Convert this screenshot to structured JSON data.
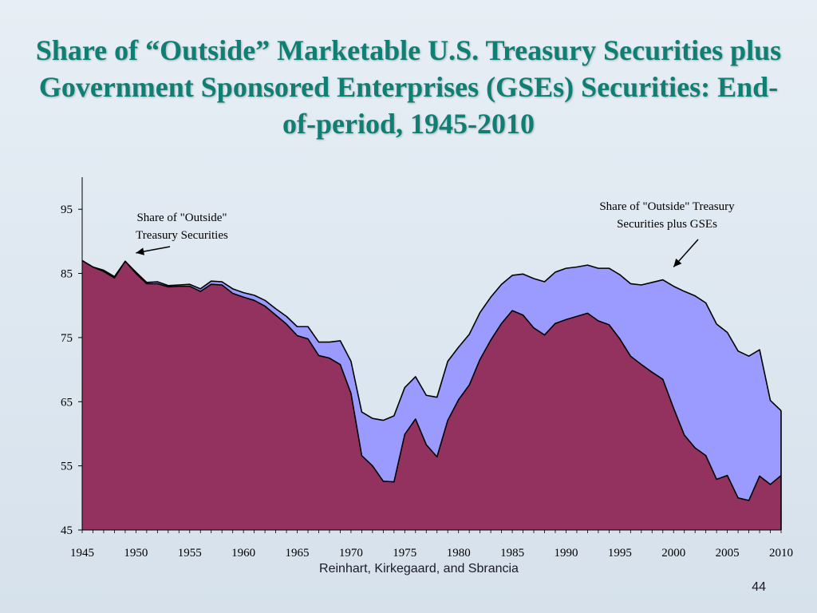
{
  "slide": {
    "title": "Share of “Outside” Marketable U.S. Treasury Securities plus Government Sponsored Enterprises (GSEs) Securities: End-of-period, 1945-2010",
    "source": "Reinhart, Kirkegaard, and Sbrancia",
    "page_number": "44"
  },
  "chart_data": {
    "type": "area",
    "title": "",
    "xlabel": "",
    "ylabel": "",
    "xlim": [
      1945,
      2010
    ],
    "ylim": [
      45,
      100
    ],
    "x_ticks": [
      "1945",
      "1950",
      "1955",
      "1960",
      "1965",
      "1970",
      "1975",
      "1980",
      "1985",
      "1990",
      "1995",
      "2000",
      "2005",
      "2010"
    ],
    "y_ticks": [
      "45",
      "55",
      "65",
      "75",
      "85",
      "95"
    ],
    "grid": false,
    "x": [
      1945,
      1946,
      1947,
      1948,
      1949,
      1950,
      1951,
      1952,
      1953,
      1954,
      1955,
      1956,
      1957,
      1958,
      1959,
      1960,
      1961,
      1962,
      1963,
      1964,
      1965,
      1966,
      1967,
      1968,
      1969,
      1970,
      1971,
      1972,
      1973,
      1974,
      1975,
      1976,
      1977,
      1978,
      1979,
      1980,
      1981,
      1982,
      1983,
      1984,
      1985,
      1986,
      1987,
      1988,
      1989,
      1990,
      1991,
      1992,
      1993,
      1994,
      1995,
      1996,
      1997,
      1998,
      1999,
      2000,
      2001,
      2002,
      2003,
      2004,
      2005,
      2006,
      2007,
      2008,
      2009,
      2010
    ],
    "series": [
      {
        "name": "Share of \"Outside\" Treasury Securities plus GSEs",
        "color": "#9b9bff",
        "values": [
          87.0,
          86.0,
          85.5,
          84.5,
          86.9,
          85.2,
          83.6,
          83.7,
          83.1,
          83.2,
          83.3,
          82.6,
          83.8,
          83.7,
          82.6,
          82.0,
          81.6,
          80.8,
          79.5,
          78.3,
          76.7,
          76.7,
          74.3,
          74.3,
          74.5,
          71.3,
          63.4,
          62.4,
          62.1,
          62.8,
          67.2,
          68.9,
          66.0,
          65.7,
          71.3,
          73.5,
          75.5,
          78.9,
          81.3,
          83.3,
          84.7,
          84.9,
          84.2,
          83.7,
          85.2,
          85.8,
          86.0,
          86.3,
          85.8,
          85.8,
          84.8,
          83.4,
          83.2,
          83.6,
          84.0,
          83.0,
          82.2,
          81.5,
          80.4,
          77.1,
          75.8,
          72.9,
          72.1,
          73.1,
          65.2,
          63.6
        ]
      },
      {
        "name": "Share of \"Outside\" Treasury Securities",
        "color": "#93315f",
        "values": [
          87.0,
          86.0,
          85.3,
          84.3,
          86.9,
          85.0,
          83.4,
          83.4,
          82.9,
          83.0,
          83.0,
          82.2,
          83.3,
          83.2,
          81.9,
          81.3,
          80.8,
          79.9,
          78.5,
          77.1,
          75.3,
          74.8,
          72.2,
          71.8,
          70.8,
          66.3,
          56.6,
          55.0,
          52.6,
          52.5,
          59.9,
          62.3,
          58.3,
          56.4,
          62.1,
          65.3,
          67.6,
          71.6,
          74.6,
          77.2,
          79.2,
          78.5,
          76.5,
          75.4,
          77.2,
          77.8,
          78.3,
          78.8,
          77.6,
          77.0,
          74.8,
          72.1,
          70.8,
          69.6,
          68.5,
          64.0,
          59.8,
          57.8,
          56.6,
          52.9,
          53.5,
          50.0,
          49.6,
          53.4,
          52.1,
          53.5
        ]
      }
    ],
    "annotations": [
      {
        "text_lines": [
          "Share of \"Outside\"",
          "Treasury Securities"
        ],
        "points_to": [
          1950,
          88.2
        ]
      },
      {
        "text_lines": [
          "Share of \"Outside\" Treasury",
          "Securities plus GSEs"
        ],
        "points_to": [
          2000,
          86.0
        ]
      }
    ]
  }
}
